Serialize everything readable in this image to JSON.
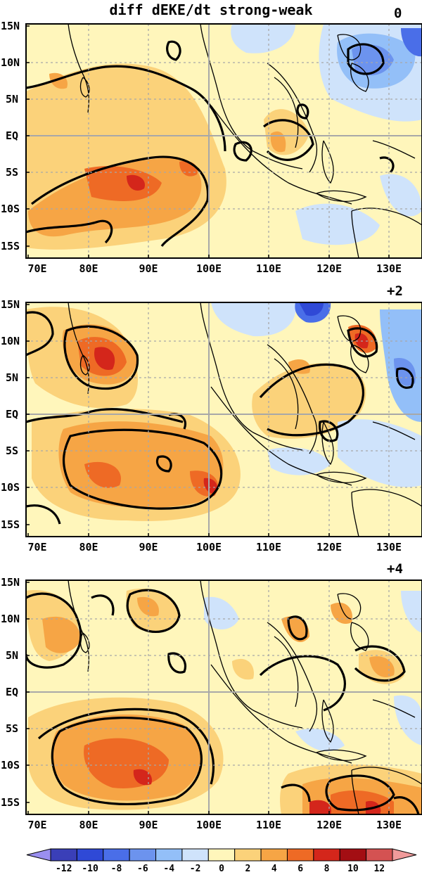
{
  "figure": {
    "title": "diff dEKE/dt strong-weak"
  },
  "panels": [
    {
      "lag_label": "0"
    },
    {
      "lag_label": "+2"
    },
    {
      "lag_label": "+4"
    }
  ],
  "axes": {
    "lon_labels": [
      "70E",
      "80E",
      "90E",
      "100E",
      "110E",
      "120E",
      "130E"
    ],
    "lat_labels": [
      "15N",
      "10N",
      "5N",
      "EQ",
      "5S",
      "10S",
      "15S"
    ]
  },
  "colorbar": {
    "levels": [
      "-12",
      "-10",
      "-8",
      "-6",
      "-4",
      "-2",
      "0",
      "2",
      "4",
      "6",
      "8",
      "10",
      "12"
    ],
    "colors": [
      "#9a8ff0",
      "#3a3fb8",
      "#2f49d6",
      "#4a6ee8",
      "#6c93ee",
      "#93bff8",
      "#cfe3fb",
      "#fff6bb",
      "#fbd27a",
      "#f6a545",
      "#ee6a25",
      "#d4261b",
      "#a30e13",
      "#d45252",
      "#f09a9a"
    ]
  },
  "style": {
    "land_line": "#000000",
    "grid": "#a8a8a8"
  }
}
